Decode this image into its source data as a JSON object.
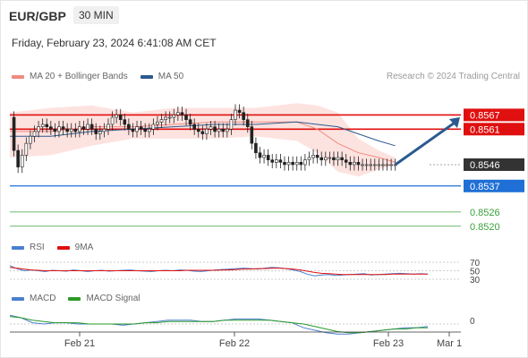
{
  "header": {
    "symbol": "EUR/GBP",
    "interval": "30 MIN",
    "datetime": "Friday, February 23, 2024 6:41:08 AM CET"
  },
  "legends": {
    "main": [
      {
        "label": "MA 20 + Bollinger Bands",
        "color": "#f08a80"
      },
      {
        "label": "MA 50",
        "color": "#2d5a8e"
      }
    ],
    "rsi": [
      {
        "label": "RSI",
        "color": "#4a7fd0"
      },
      {
        "label": "9MA",
        "color": "#e01010"
      }
    ],
    "macd": [
      {
        "label": "MACD",
        "color": "#4a7fd0"
      },
      {
        "label": "MACD Signal",
        "color": "#2a9a2a"
      }
    ]
  },
  "credit": "Research © 2024 Trading Central",
  "colors": {
    "resistance": "#e01010",
    "current": "#333333",
    "pivot": "#1f6fd6",
    "support": "#3aa13a",
    "band": "#fde3e0",
    "arrow": "#2a5a90"
  },
  "chart_data": {
    "type": "line",
    "title": "EUR/GBP",
    "ylim": [
      0.8515,
      0.858
    ],
    "x_labels": [
      "Feb 21",
      "Feb 22",
      "Feb 23",
      "Mar 1"
    ],
    "price": {
      "current": 0.8546,
      "t": [
        0,
        2,
        4,
        6,
        8,
        10,
        12,
        14,
        16,
        18,
        20,
        22,
        24,
        26,
        28,
        30,
        32,
        34,
        36,
        38,
        40,
        42,
        44,
        46,
        48,
        50,
        52,
        54,
        56,
        58,
        60,
        62,
        64,
        66,
        68,
        70,
        72,
        74,
        76,
        78,
        80,
        82,
        84,
        86,
        88,
        90,
        92,
        94,
        96,
        98,
        100,
        102,
        104,
        106,
        108,
        110,
        112,
        114,
        116,
        118,
        120,
        122,
        124,
        126,
        128,
        130,
        132,
        134,
        136,
        138,
        140,
        142,
        144,
        146,
        148,
        150,
        152,
        154,
        156,
        158,
        160,
        162,
        164,
        166,
        168,
        170,
        172,
        174,
        176,
        178,
        180,
        182,
        184,
        186,
        188
      ],
      "close": [
        0.8566,
        0.8552,
        0.8545,
        0.855,
        0.8555,
        0.8558,
        0.856,
        0.8562,
        0.8563,
        0.8562,
        0.8561,
        0.856,
        0.8562,
        0.8561,
        0.856,
        0.8561,
        0.856,
        0.8562,
        0.8561,
        0.8563,
        0.8561,
        0.8559,
        0.856,
        0.8561,
        0.8563,
        0.8566,
        0.8567,
        0.8565,
        0.8563,
        0.8561,
        0.856,
        0.8562,
        0.8561,
        0.856,
        0.8561,
        0.8563,
        0.8564,
        0.8565,
        0.8566,
        0.8566,
        0.8567,
        0.8568,
        0.8567,
        0.8565,
        0.8563,
        0.8561,
        0.856,
        0.8559,
        0.8561,
        0.8562,
        0.856,
        0.8561,
        0.856,
        0.8561,
        0.8565,
        0.8569,
        0.8568,
        0.8565,
        0.8562,
        0.8555,
        0.8551,
        0.8549,
        0.855,
        0.8548,
        0.8547,
        0.8548,
        0.8547,
        0.8546,
        0.8547,
        0.8546,
        0.8547,
        0.8546,
        0.8548,
        0.8549,
        0.855,
        0.8549,
        0.8548,
        0.8549,
        0.8549,
        0.8548,
        0.8549,
        0.8548,
        0.8547,
        0.8546,
        0.8547,
        0.8546,
        0.8546,
        0.8546,
        0.8546,
        0.8546,
        0.8546,
        0.8546,
        0.8546,
        0.8546,
        0.8546
      ]
    },
    "ma50": [
      [
        0,
        0.8558
      ],
      [
        20,
        0.8558
      ],
      [
        40,
        0.856
      ],
      [
        60,
        0.8561
      ],
      [
        80,
        0.8562
      ],
      [
        100,
        0.8563
      ],
      [
        120,
        0.8563
      ],
      [
        140,
        0.8564
      ],
      [
        150,
        0.8563
      ],
      [
        160,
        0.8562
      ],
      [
        170,
        0.8559
      ],
      [
        180,
        0.8556
      ],
      [
        188,
        0.8554
      ]
    ],
    "ma20": [
      [
        0,
        0.856
      ],
      [
        20,
        0.856
      ],
      [
        40,
        0.8562
      ],
      [
        60,
        0.8562
      ],
      [
        80,
        0.8563
      ],
      [
        100,
        0.8564
      ],
      [
        120,
        0.8564
      ],
      [
        140,
        0.8564
      ],
      [
        150,
        0.8561
      ],
      [
        160,
        0.8555
      ],
      [
        170,
        0.8551
      ],
      [
        180,
        0.8549
      ],
      [
        188,
        0.8547
      ]
    ],
    "bb_upper": [
      [
        0,
        0.8568
      ],
      [
        20,
        0.857
      ],
      [
        40,
        0.8571
      ],
      [
        60,
        0.8568
      ],
      [
        80,
        0.857
      ],
      [
        100,
        0.857
      ],
      [
        120,
        0.857
      ],
      [
        140,
        0.8572
      ],
      [
        150,
        0.8571
      ],
      [
        160,
        0.8568
      ],
      [
        170,
        0.8557
      ],
      [
        180,
        0.8552
      ],
      [
        188,
        0.8549
      ]
    ],
    "bb_lower": [
      [
        0,
        0.8549
      ],
      [
        20,
        0.855
      ],
      [
        40,
        0.8554
      ],
      [
        60,
        0.8557
      ],
      [
        80,
        0.8557
      ],
      [
        100,
        0.8557
      ],
      [
        120,
        0.8558
      ],
      [
        140,
        0.8556
      ],
      [
        150,
        0.8551
      ],
      [
        160,
        0.8543
      ],
      [
        170,
        0.8541
      ],
      [
        180,
        0.8544
      ],
      [
        188,
        0.8546
      ]
    ],
    "levels": [
      {
        "value": 0.8567,
        "label": "0.8567",
        "kind": "resistance"
      },
      {
        "value": 0.8561,
        "label": "0.8561",
        "kind": "resistance"
      },
      {
        "value": 0.8546,
        "label": "0.8546",
        "kind": "current"
      },
      {
        "value": 0.8537,
        "label": "0.8537",
        "kind": "pivot"
      },
      {
        "value": 0.8526,
        "label": "0.8526",
        "kind": "support"
      },
      {
        "value": 0.852,
        "label": "0.8520",
        "kind": "support"
      }
    ],
    "forecast_arrow": {
      "from": 0.8546,
      "to": 0.8566
    },
    "rsi": {
      "ticks": [
        70,
        50,
        30
      ],
      "values": [
        62,
        55,
        50,
        52,
        50,
        48,
        51,
        50,
        49,
        52,
        50,
        48,
        50,
        51,
        49,
        50,
        51,
        52,
        50,
        49,
        48,
        50,
        51,
        50,
        52,
        51,
        49,
        48,
        50,
        52,
        53,
        54,
        55,
        56,
        55,
        54,
        56,
        58,
        57,
        55,
        52,
        48,
        42,
        38,
        40,
        41,
        39,
        40,
        41,
        42,
        43,
        40,
        41,
        42,
        43,
        44,
        43,
        42,
        43,
        42
      ],
      "ma": [
        58,
        56,
        54,
        52,
        51,
        50,
        50,
        50,
        50,
        50,
        50,
        50,
        50,
        50,
        50,
        50,
        50,
        50,
        50,
        50,
        50,
        50,
        50,
        50,
        50,
        51,
        51,
        51,
        51,
        51,
        52,
        52,
        53,
        54,
        54,
        55,
        55,
        56,
        56,
        55,
        54,
        52,
        49,
        46,
        44,
        43,
        42,
        41,
        41,
        41,
        41,
        41,
        41,
        41,
        42,
        42,
        42,
        42,
        42,
        42
      ]
    },
    "macd": {
      "zero_label": "0",
      "values": [
        0.7,
        0.5,
        0.1,
        0.0,
        0.1,
        0.1,
        0.0,
        0.0,
        0.0,
        0.0,
        -0.1,
        0.0,
        0.1,
        0.2,
        0.3,
        0.3,
        0.3,
        0.2,
        0.2,
        0.3,
        0.4,
        0.4,
        0.4,
        0.3,
        0.2,
        0.1,
        -0.3,
        -0.5,
        -0.7,
        -0.8,
        -0.8,
        -0.7,
        -0.6,
        -0.5,
        -0.4,
        -0.3,
        -0.3,
        -0.2
      ],
      "signal": [
        0.6,
        0.5,
        0.3,
        0.2,
        0.1,
        0.1,
        0.1,
        0.0,
        0.0,
        0.0,
        0.0,
        0.0,
        0.1,
        0.1,
        0.2,
        0.2,
        0.2,
        0.2,
        0.2,
        0.3,
        0.3,
        0.3,
        0.3,
        0.3,
        0.2,
        0.1,
        0.0,
        -0.2,
        -0.4,
        -0.6,
        -0.7,
        -0.7,
        -0.6,
        -0.5,
        -0.4,
        -0.4,
        -0.3,
        -0.3
      ]
    }
  }
}
